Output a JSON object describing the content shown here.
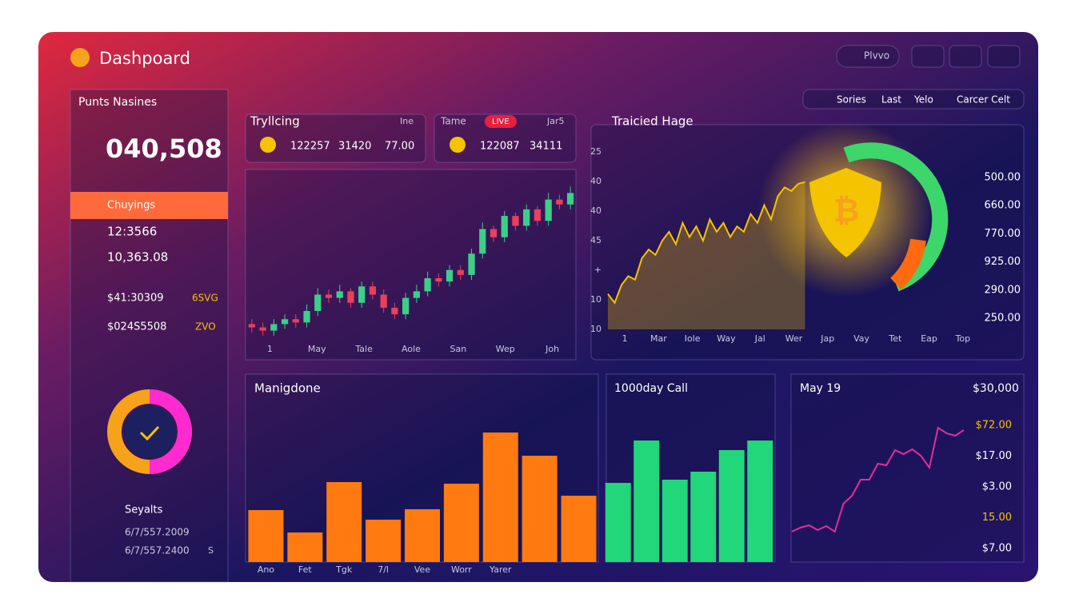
{
  "header": {
    "title": "Dashpoard",
    "search": "Plvvo"
  },
  "filters": [
    "Sories",
    "Last",
    "Yelo",
    "Carcer Celt"
  ],
  "sidebar": {
    "title": "Punts Nasines",
    "big_value": "040,508",
    "active": "Chuyings",
    "items": [
      "12:3566",
      "10,363.08"
    ],
    "rows": [
      [
        "$41:30309",
        "6SVG"
      ],
      [
        "$024S5508",
        "ZVO"
      ]
    ],
    "status": "Seyalts",
    "dates": [
      "6/7/557.2009",
      "6/7/557.2400"
    ],
    "date_tag": "S"
  },
  "tickers": [
    {
      "name": "Tryllcing",
      "tag": "Ine",
      "values": [
        "122257",
        "31420",
        "77.00"
      ]
    },
    {
      "name": "Tame",
      "badge": "LIVE",
      "tag": "Jar5",
      "values": [
        "122087",
        "34111"
      ]
    }
  ],
  "chart_data": [
    {
      "type": "candlestick",
      "ylim": [
        0,
        100
      ],
      "up_color": "#3ccf8a",
      "down_color": "#e8405e",
      "xlabels": [
        "1",
        "May",
        "Tale",
        "Aole",
        "San",
        "Wep",
        "Joh"
      ],
      "open": [
        12,
        10,
        8,
        12,
        15,
        13,
        20,
        30,
        28,
        32,
        25,
        35,
        30,
        22,
        18,
        28,
        32,
        40,
        38,
        45,
        42,
        55,
        70,
        65,
        78,
        72,
        82,
        75,
        88,
        85
      ],
      "close": [
        10,
        8,
        12,
        15,
        13,
        20,
        30,
        28,
        32,
        25,
        35,
        30,
        22,
        18,
        28,
        32,
        40,
        38,
        45,
        42,
        55,
        70,
        65,
        78,
        72,
        82,
        75,
        88,
        85,
        92
      ],
      "high": [
        15,
        13,
        15,
        18,
        18,
        24,
        34,
        33,
        36,
        34,
        38,
        38,
        33,
        25,
        31,
        36,
        44,
        43,
        48,
        48,
        58,
        74,
        72,
        81,
        80,
        85,
        84,
        92,
        91,
        96
      ],
      "low": [
        7,
        5,
        5,
        9,
        10,
        10,
        17,
        25,
        25,
        22,
        22,
        27,
        19,
        15,
        15,
        25,
        29,
        35,
        35,
        39,
        39,
        52,
        62,
        62,
        69,
        69,
        72,
        72,
        82,
        82
      ]
    },
    {
      "type": "area",
      "title": "Traicied Hage",
      "color": "#f4c400",
      "ylim": [
        0,
        100
      ],
      "left_labels": [
        "25",
        "40",
        "40",
        "45",
        "+",
        "10",
        "10"
      ],
      "right_labels": [
        "500.00",
        "660.00",
        "770.00",
        "925.00",
        "290.00",
        "250.00"
      ],
      "xlabels": [
        "1",
        "Mar",
        "Iole",
        "Way",
        "Jal",
        "Wer",
        "Jap",
        "Vay",
        "Tet",
        "Eap",
        "Top"
      ],
      "values": [
        20,
        15,
        25,
        30,
        28,
        40,
        45,
        42,
        50,
        55,
        48,
        60,
        52,
        58,
        50,
        62,
        55,
        60,
        52,
        58,
        55,
        65,
        60,
        70,
        62,
        75,
        80,
        78,
        82,
        83
      ]
    },
    {
      "type": "bar",
      "title": "Manigdone",
      "color": "#ff7a10",
      "ylim": [
        0,
        100
      ],
      "categories": [
        "Ano",
        "Fet",
        "Tgk",
        "7/l",
        "Vee",
        "Worr",
        "Yarer",
        null,
        null
      ],
      "values": [
        32.5,
        18.5,
        50,
        26.5,
        33,
        49,
        81,
        66.5,
        41.5
      ]
    },
    {
      "type": "bar",
      "title": "1000day Call",
      "color": "#22d67a",
      "ylim": [
        0,
        100
      ],
      "categories": [
        null,
        null,
        null,
        null,
        null,
        null
      ],
      "values": [
        49.5,
        76,
        51.5,
        56.5,
        70,
        76
      ]
    },
    {
      "type": "line",
      "title": "May 19",
      "subtitle": "$30,000",
      "color": "#e0309a",
      "ylim": [
        0,
        100
      ],
      "right_labels": [
        "$72.00",
        "$17.00",
        "$3.00",
        "15.00",
        "$7.00"
      ],
      "right_label_colors": [
        "#f4c400",
        "#ffffff",
        "#ffffff",
        "#f4c400",
        "#ffffff"
      ],
      "values": [
        17.5,
        20,
        21.5,
        18.5,
        21,
        17.5,
        35,
        40,
        50,
        50,
        60,
        59,
        68.5,
        66,
        69,
        65,
        57.5,
        82.5,
        79,
        77.5,
        81
      ]
    }
  ]
}
